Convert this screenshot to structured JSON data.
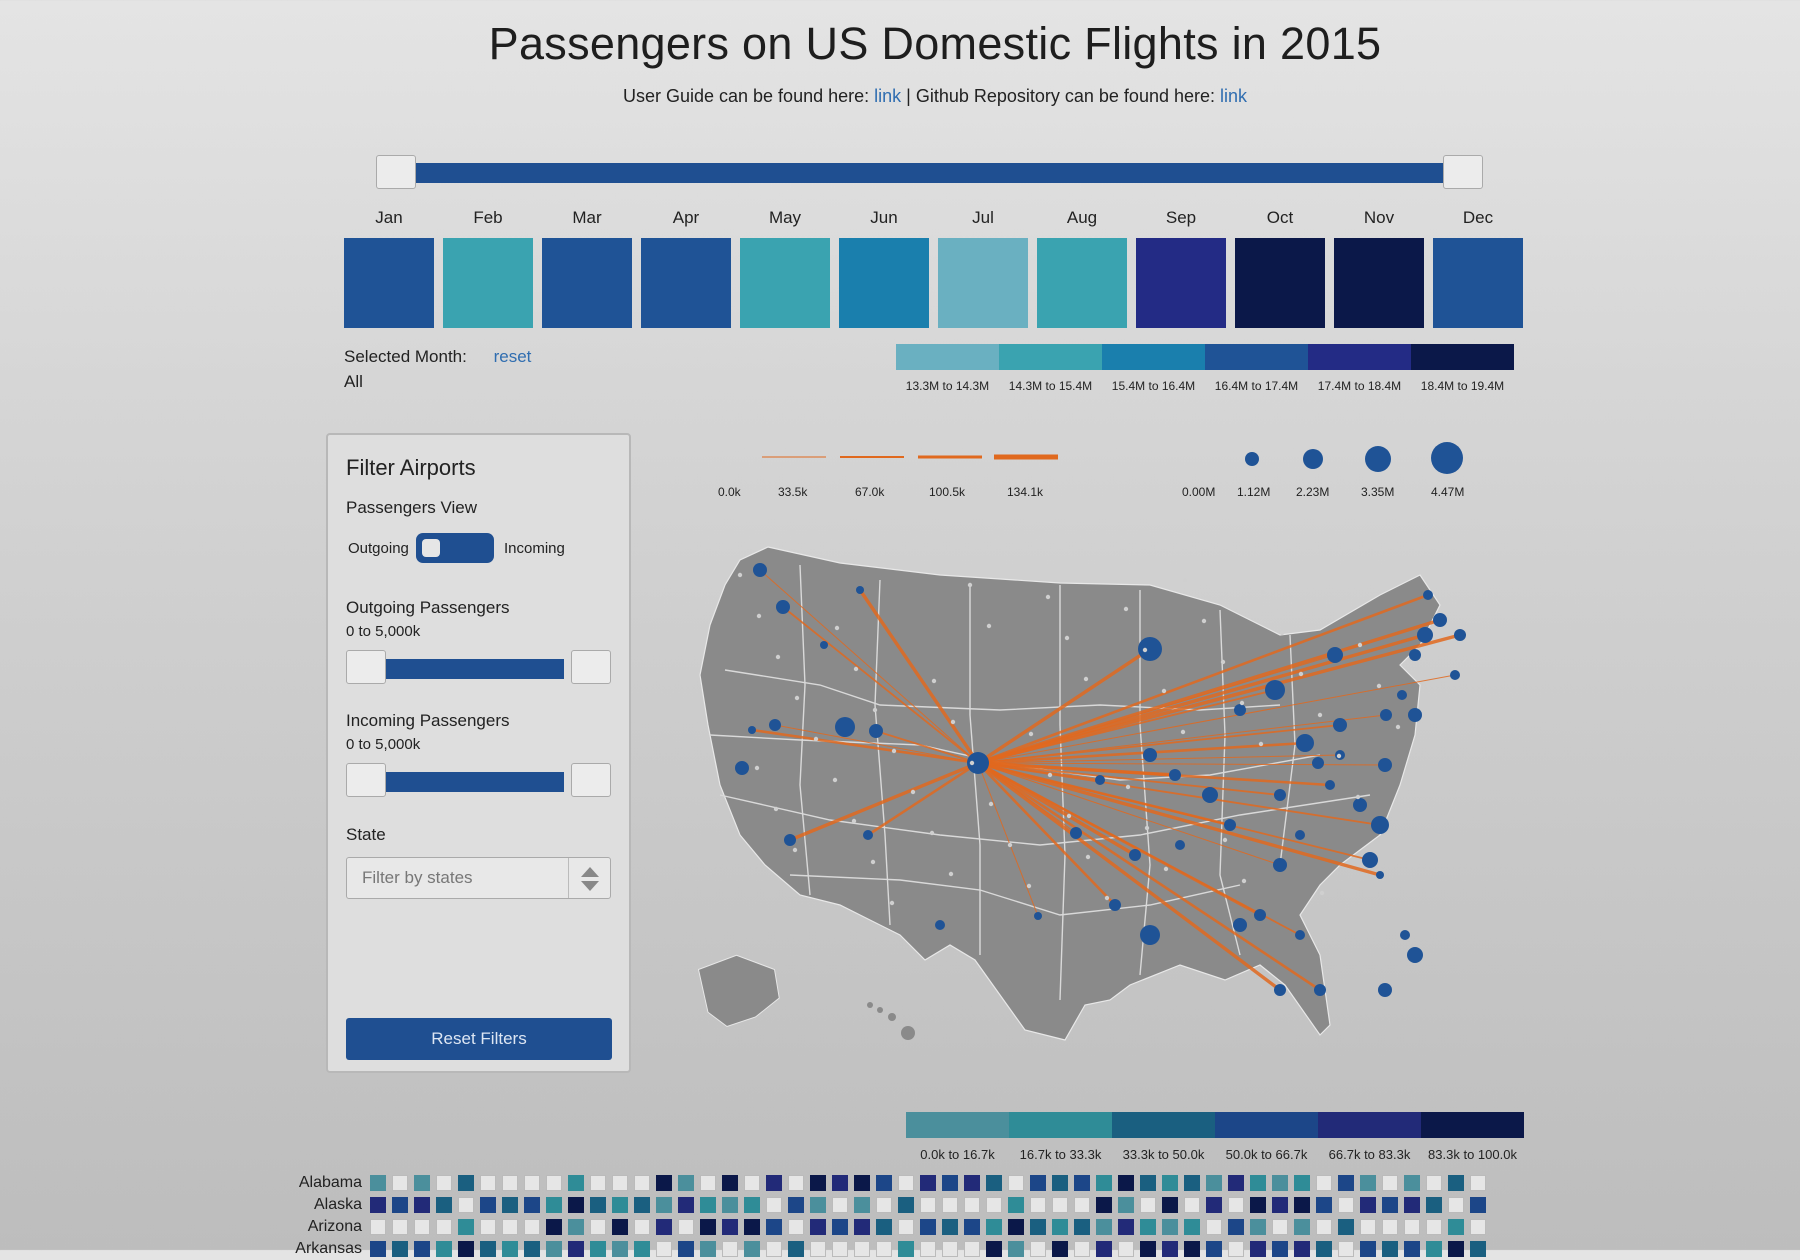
{
  "header": {
    "title": "Passengers on US Domestic Flights in 2015",
    "subtitle_pre": "User Guide can be found here: ",
    "guide_link": "link",
    "subtitle_mid": " | Github Repository can be found here: ",
    "repo_link": "link"
  },
  "months": [
    {
      "label": "Jan",
      "color": "#1f5396"
    },
    {
      "label": "Feb",
      "color": "#3aa3b0"
    },
    {
      "label": "Mar",
      "color": "#1f5396"
    },
    {
      "label": "Apr",
      "color": "#1f5396"
    },
    {
      "label": "May",
      "color": "#3aa3b0"
    },
    {
      "label": "Jun",
      "color": "#1a7fad"
    },
    {
      "label": "Jul",
      "color": "#6ab0c1"
    },
    {
      "label": "Aug",
      "color": "#3aa3b0"
    },
    {
      "label": "Sep",
      "color": "#232b85"
    },
    {
      "label": "Oct",
      "color": "#0b1849"
    },
    {
      "label": "Nov",
      "color": "#0b1849"
    },
    {
      "label": "Dec",
      "color": "#1f5396"
    }
  ],
  "selected_month": {
    "label": "Selected Month:",
    "value": "All",
    "reset": "reset"
  },
  "month_legend": [
    {
      "label": "13.3M to 14.3M",
      "color": "#6ab0c1"
    },
    {
      "label": "14.3M to 15.4M",
      "color": "#3aa3b0"
    },
    {
      "label": "15.4M to 16.4M",
      "color": "#1a7fad"
    },
    {
      "label": "16.4M to 17.4M",
      "color": "#1f5396"
    },
    {
      "label": "17.4M to 18.4M",
      "color": "#232b85"
    },
    {
      "label": "18.4M to 19.4M",
      "color": "#0b1849"
    }
  ],
  "filter": {
    "title": "Filter Airports",
    "view_label": "Passengers View",
    "outgoing": "Outgoing",
    "incoming": "Incoming",
    "out_label": "Outgoing Passengers",
    "out_range": "0 to 5,000k",
    "in_label": "Incoming Passengers",
    "in_range": "0 to 5,000k",
    "state_label": "State",
    "state_placeholder": "Filter by states",
    "reset": "Reset Filters"
  },
  "route_legend": [
    "0.0k",
    "33.5k",
    "67.0k",
    "100.5k",
    "134.1k"
  ],
  "size_legend": [
    "0.00M",
    "1.12M",
    "2.23M",
    "3.35M",
    "4.47M"
  ],
  "heat_legend": [
    {
      "label": "0.0k to 16.7k",
      "color": "#4b8f9c"
    },
    {
      "label": "16.7k to 33.3k",
      "color": "#2f8c97"
    },
    {
      "label": "33.3k to 50.0k",
      "color": "#1a5f80"
    },
    {
      "label": "50.0k to 66.7k",
      "color": "#1c4688"
    },
    {
      "label": "66.7k to 83.3k",
      "color": "#222a78"
    },
    {
      "label": "83.3k to 100.0k",
      "color": "#0b1849"
    }
  ],
  "heat_states": [
    "Alabama",
    "Alaska",
    "Arizona",
    "Arkansas"
  ],
  "colors": {
    "accent": "#1f4f91",
    "route": "#e0691e",
    "airport": "#1f5396"
  }
}
